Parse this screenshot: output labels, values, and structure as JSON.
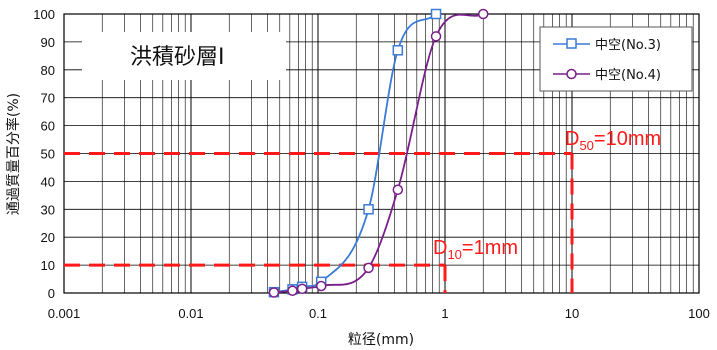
{
  "chart_data": {
    "type": "line",
    "xscale": "log",
    "xlim": [
      0.001,
      100
    ],
    "ylim": [
      0,
      100
    ],
    "x_ticks": [
      "0.001",
      "0.01",
      "0.1",
      "1",
      "10",
      "100"
    ],
    "y_ticks": [
      "0",
      "10",
      "20",
      "30",
      "40",
      "50",
      "60",
      "70",
      "80",
      "90",
      "100"
    ],
    "xlabel": "粒径(mm)",
    "ylabel": "通過質量百分率(%)",
    "grid": true,
    "legend_position": "top-right",
    "series": [
      {
        "name": "中空(No.3)",
        "color": "#3a7bd5",
        "marker": "square",
        "x": [
          0.045,
          0.063,
          0.075,
          0.106,
          0.25,
          0.425,
          0.85
        ],
        "y": [
          0.3,
          1.3,
          2.2,
          4.0,
          30,
          87,
          100
        ]
      },
      {
        "name": "中空(No.4)",
        "color": "#7a1f8a",
        "marker": "circle",
        "x": [
          0.045,
          0.063,
          0.075,
          0.106,
          0.25,
          0.425,
          0.85,
          2.0
        ],
        "y": [
          0.2,
          0.8,
          1.5,
          2.5,
          9,
          37,
          92,
          100
        ]
      }
    ],
    "text_box": "洪積砂層Ⅰ",
    "reference_lines": [
      {
        "label_main": "D",
        "label_sub": "10",
        "label_rest": "=1mm",
        "x": 1,
        "y": 10,
        "color": "#ff1a1a"
      },
      {
        "label_main": "D",
        "label_sub": "50",
        "label_rest": "=10mm",
        "x": 10,
        "y": 50,
        "color": "#ff1a1a"
      }
    ]
  }
}
